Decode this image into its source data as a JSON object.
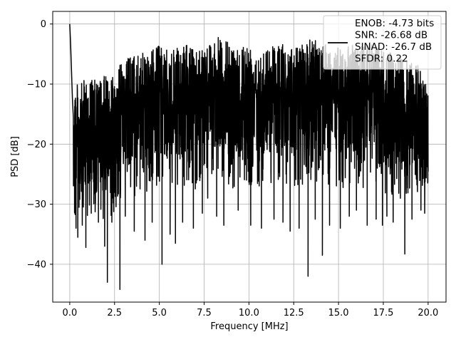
{
  "chart_data": {
    "type": "line",
    "title": "",
    "xlabel": "Frequency [MHz]",
    "ylabel": "PSD [dB]",
    "xlim": [
      -0.95,
      21.0
    ],
    "ylim": [
      -46.3,
      2.1
    ],
    "x_ticks": [
      0.0,
      2.5,
      5.0,
      7.5,
      10.0,
      12.5,
      15.0,
      17.5,
      20.0
    ],
    "x_tick_labels": [
      "0.0",
      "2.5",
      "5.0",
      "7.5",
      "10.0",
      "12.5",
      "15.0",
      "17.5",
      "20.0"
    ],
    "y_ticks": [
      0,
      -10,
      -20,
      -30,
      -40
    ],
    "y_tick_labels": [
      "0",
      "−10",
      "−20",
      "−30",
      "−40"
    ],
    "grid": true,
    "legend_position": "top-right",
    "series": [
      {
        "name": "",
        "color": "#000000",
        "x_range": [
          0.0,
          20.0
        ],
        "description_of_envelope": "dense noise-like spectrum",
        "peak_points": [
          [
            0.0,
            0.0
          ],
          [
            0.05,
            -3.5
          ],
          [
            0.1,
            -8.0
          ],
          [
            0.15,
            -12.5
          ],
          [
            0.2,
            -15.5
          ]
        ],
        "upper_envelope": [
          [
            0.3,
            -9.0
          ],
          [
            0.5,
            -10.5
          ],
          [
            1.0,
            -8.5
          ],
          [
            1.5,
            -9.5
          ],
          [
            2.0,
            -8.5
          ],
          [
            2.5,
            -7.5
          ],
          [
            3.0,
            -6.0
          ],
          [
            3.5,
            -5.0
          ],
          [
            4.0,
            -5.0
          ],
          [
            4.5,
            -4.0
          ],
          [
            5.0,
            -3.5
          ],
          [
            5.5,
            -4.5
          ],
          [
            6.0,
            -4.0
          ],
          [
            6.5,
            -3.5
          ],
          [
            7.0,
            -4.0
          ],
          [
            7.5,
            -3.0
          ],
          [
            8.0,
            -2.5
          ],
          [
            8.5,
            -2.0
          ],
          [
            9.0,
            -3.5
          ],
          [
            9.5,
            -3.0
          ],
          [
            10.0,
            -3.0
          ],
          [
            10.5,
            -3.5
          ],
          [
            11.0,
            -4.0
          ],
          [
            11.5,
            -2.5
          ],
          [
            12.0,
            -3.5
          ],
          [
            12.5,
            -4.0
          ],
          [
            13.0,
            -3.0
          ],
          [
            13.5,
            -2.5
          ],
          [
            14.0,
            -2.0
          ],
          [
            14.5,
            -3.5
          ],
          [
            15.0,
            -4.0
          ],
          [
            15.5,
            -3.5
          ],
          [
            16.0,
            -3.0
          ],
          [
            16.5,
            -3.5
          ],
          [
            17.0,
            -2.5
          ],
          [
            17.5,
            -4.0
          ],
          [
            18.0,
            -5.0
          ],
          [
            18.5,
            -5.5
          ],
          [
            19.0,
            -6.0
          ],
          [
            19.5,
            -7.0
          ],
          [
            20.0,
            -9.5
          ]
        ],
        "deep_dips": [
          [
            0.35,
            -34.0
          ],
          [
            0.45,
            -35.5
          ],
          [
            0.7,
            -33.5
          ],
          [
            0.9,
            -37.2
          ],
          [
            1.2,
            -31.5
          ],
          [
            1.6,
            -33.0
          ],
          [
            1.95,
            -37.0
          ],
          [
            2.1,
            -43.0
          ],
          [
            2.35,
            -33.0
          ],
          [
            2.8,
            -44.2
          ],
          [
            3.1,
            -32.0
          ],
          [
            3.6,
            -34.5
          ],
          [
            4.2,
            -36.0
          ],
          [
            4.6,
            -33.0
          ],
          [
            5.15,
            -40.0
          ],
          [
            5.6,
            -35.0
          ],
          [
            5.9,
            -36.5
          ],
          [
            6.3,
            -33.0
          ],
          [
            6.9,
            -34.0
          ],
          [
            7.4,
            -31.5
          ],
          [
            7.7,
            -29.0
          ],
          [
            8.2,
            -32.0
          ],
          [
            8.6,
            -33.5
          ],
          [
            9.4,
            -31.0
          ],
          [
            10.1,
            -33.5
          ],
          [
            10.7,
            -34.0
          ],
          [
            11.4,
            -32.5
          ],
          [
            11.9,
            -33.0
          ],
          [
            12.3,
            -34.5
          ],
          [
            12.8,
            -34.0
          ],
          [
            13.3,
            -42.0
          ],
          [
            13.7,
            -32.5
          ],
          [
            14.1,
            -38.5
          ],
          [
            14.5,
            -33.5
          ],
          [
            15.1,
            -34.0
          ],
          [
            15.6,
            -32.0
          ],
          [
            16.0,
            -31.0
          ],
          [
            16.6,
            -33.5
          ],
          [
            17.1,
            -32.5
          ],
          [
            17.45,
            -33.5
          ],
          [
            17.7,
            -32.0
          ],
          [
            18.05,
            -33.0
          ],
          [
            18.7,
            -38.3
          ],
          [
            19.1,
            -32.5
          ],
          [
            19.6,
            -31.0
          ],
          [
            20.0,
            -24.5
          ]
        ]
      }
    ],
    "legend": {
      "entries": [
        "ENOB: -4.73 bits",
        "SNR: -26.68 dB",
        "SINAD: -26.7 dB",
        "SFDR: 0.22"
      ]
    }
  }
}
